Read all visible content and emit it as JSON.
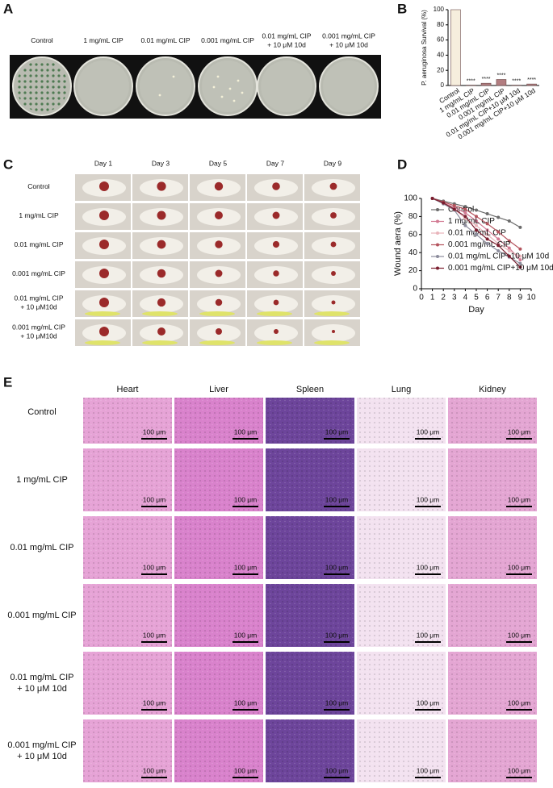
{
  "panel_a": {
    "letter": "A",
    "columns": [
      [
        "Control"
      ],
      [
        "1 mg/mL CIP"
      ],
      [
        "0.01 mg/mL CIP"
      ],
      [
        "0.001 mg/mL CIP"
      ],
      [
        "0.01 mg/mL CIP",
        "+ 10 μM 10d"
      ],
      [
        "0.001 mg/mL CIP",
        "+ 10 μM 10d"
      ]
    ]
  },
  "chart_data": [
    {
      "panel_label": "B",
      "type": "bar",
      "y_label": "P. aeruginosa Survival (%)",
      "categories": [
        "Control",
        "1 mg/mL CIP",
        "0.01 mg/mL CIP",
        "0.001 mg/mL CIP",
        "0.01 mg/mL CIP+10 μM 10d",
        "0.001 mg/mL CIP+10 μM 10d"
      ],
      "values": [
        100,
        0.5,
        3,
        8,
        0.5,
        2
      ],
      "colors": [
        "#f6eedd",
        "#b27d80",
        "#b27d80",
        "#b27d80",
        "#b27d80",
        "#b27d80"
      ],
      "annotations": [
        null,
        "****",
        "****",
        "****",
        "****",
        "****"
      ],
      "ylim": [
        0,
        100
      ],
      "yticks": [
        0,
        20,
        40,
        60,
        80,
        100
      ]
    },
    {
      "panel_label": "D",
      "type": "line",
      "y_label": "Wound aera (%)",
      "x_label": "Day",
      "x": [
        1,
        2,
        3,
        4,
        5,
        6,
        7,
        8,
        9
      ],
      "series": [
        {
          "name": "Control",
          "color": "#6b6b6b",
          "values": [
            100,
            97,
            94,
            91,
            87,
            83,
            79,
            75,
            68
          ]
        },
        {
          "name": "1 mg/mL CIP",
          "color": "#d27a93",
          "values": [
            100,
            95,
            90,
            84,
            75,
            65,
            55,
            45,
            32
          ]
        },
        {
          "name": "0.01 mg/mL CIP",
          "color": "#e9b5bb",
          "values": [
            100,
            95,
            88,
            78,
            70,
            60,
            50,
            42,
            36
          ]
        },
        {
          "name": "0.001 mg/mL CIP",
          "color": "#b4535d",
          "values": [
            100,
            96,
            92,
            88,
            80,
            72,
            63,
            53,
            44
          ]
        },
        {
          "name": "0.01 mg/mL CIP+10 μM 10d",
          "color": "#8c8c9c",
          "values": [
            100,
            94,
            87,
            70,
            60,
            50,
            42,
            35,
            28
          ]
        },
        {
          "name": "0.001 mg/mL CIP+10 μM 10d",
          "color": "#7a1d2e",
          "values": [
            100,
            95,
            88,
            80,
            65,
            55,
            48,
            36,
            24
          ]
        }
      ],
      "xlim": [
        0,
        10
      ],
      "xticks": [
        0,
        1,
        2,
        3,
        4,
        5,
        6,
        7,
        8,
        9,
        10
      ],
      "ylim": [
        0,
        100
      ],
      "yticks": [
        0,
        20,
        40,
        60,
        80,
        100
      ],
      "legend": "lower left"
    }
  ],
  "panel_c": {
    "letter": "C",
    "columns": [
      "Day 1",
      "Day 3",
      "Day 5",
      "Day 7",
      "Day 9"
    ],
    "rows": [
      [
        "Control"
      ],
      [
        "1 mg/mL CIP"
      ],
      [
        "0.01 mg/mL CIP"
      ],
      [
        "0.001 mg/mL CIP"
      ],
      [
        "0.01 mg/mL CIP",
        "+ 10 μM10d"
      ],
      [
        "0.001 mg/mL CIP",
        "+ 10 μM10d"
      ]
    ]
  },
  "panel_e": {
    "letter": "E",
    "columns": [
      "Heart",
      "Liver",
      "Spleen",
      "Lung",
      "Kidney"
    ],
    "rows": [
      [
        "Control"
      ],
      [
        "1 mg/mL CIP"
      ],
      [
        "0.01 mg/mL CIP"
      ],
      [
        "0.001 mg/mL CIP"
      ],
      [
        "0.01 mg/mL CIP",
        "+ 10 μM 10d"
      ],
      [
        "0.001 mg/mL CIP",
        "+ 10 μM 10d"
      ]
    ],
    "scale_bar": "100 μm"
  }
}
